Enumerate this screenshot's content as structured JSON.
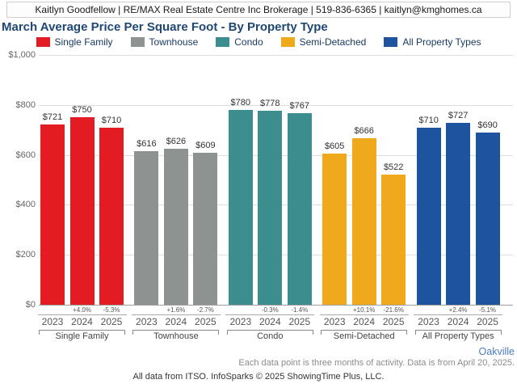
{
  "header": {
    "text": "Kaitlyn Goodfellow | RE/MAX Real Estate Centre Inc Brokerage | 519-836-6365 | kaitlyn@kmghomes.ca"
  },
  "title": "March Average Price Per Square Foot - By Property Type",
  "chart_data": {
    "type": "bar",
    "title": "March Average Price Per Square Foot - By Property Type",
    "categories": [
      "2023",
      "2024",
      "2025"
    ],
    "groups": [
      {
        "name": "Single Family",
        "color": "#e31b23",
        "values": [
          721,
          750,
          710
        ],
        "changes": [
          null,
          "+4.0%",
          "-5.3%"
        ]
      },
      {
        "name": "Townhouse",
        "color": "#8e9392",
        "values": [
          616,
          626,
          609
        ],
        "changes": [
          null,
          "+1.6%",
          "-2.7%"
        ]
      },
      {
        "name": "Condo",
        "color": "#3c8e8e",
        "values": [
          780,
          778,
          767
        ],
        "changes": [
          null,
          "-0.3%",
          "-1.4%"
        ]
      },
      {
        "name": "Semi-Detached",
        "color": "#f0a81c",
        "values": [
          605,
          666,
          522
        ],
        "changes": [
          null,
          "+10.1%",
          "-21.6%"
        ]
      },
      {
        "name": "All Property Types",
        "color": "#1e53a0",
        "values": [
          710,
          727,
          690
        ],
        "changes": [
          null,
          "+2.4%",
          "-5.1%"
        ]
      }
    ],
    "ylim": [
      0,
      1000
    ],
    "yticks": [
      "$0",
      "$200",
      "$400",
      "$600",
      "$800",
      "$1,000"
    ],
    "grid": true,
    "legend_position": "top",
    "value_prefix": "$"
  },
  "footer": {
    "location": "Oakville",
    "note": "Each data point is three months of activity. Data is from April 20, 2025.",
    "attribution": "All data from ITSO. InfoSparks © 2025 ShowingTime Plus, LLC."
  }
}
